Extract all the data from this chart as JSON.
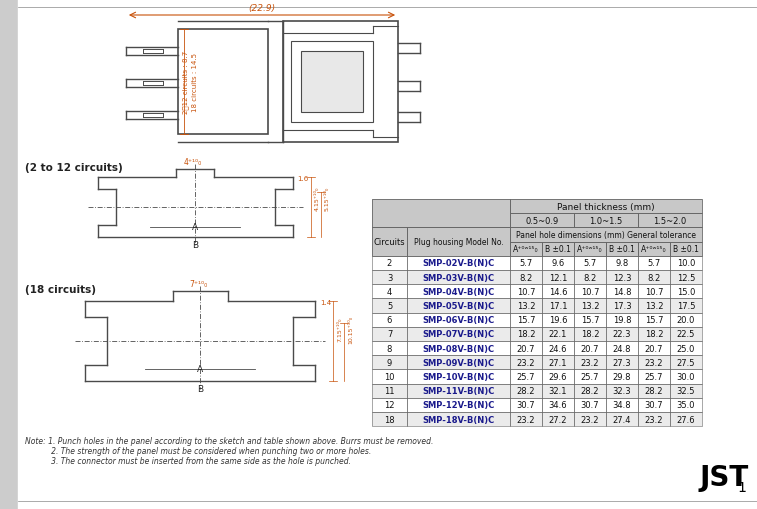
{
  "bg_color": "#ffffff",
  "dim_color": "#c8520a",
  "draw_color": "#4a4a4a",
  "header_bg": "#c8c8c8",
  "model_color": "#1a1a8c",
  "table_header1": "Panel thickness (mm)",
  "table_header2_cols": [
    "0.5~0.9",
    "1.0~1.5",
    "1.5~2.0"
  ],
  "table_header3": "Panel hole dimensions (mm) General tolerance",
  "table_data": [
    [
      2,
      "SMP-02V-B(N)C",
      "5.7",
      "9.6",
      "5.7",
      "9.8",
      "5.7",
      "10.0"
    ],
    [
      3,
      "SMP-03V-B(N)C",
      "8.2",
      "12.1",
      "8.2",
      "12.3",
      "8.2",
      "12.5"
    ],
    [
      4,
      "SMP-04V-B(N)C",
      "10.7",
      "14.6",
      "10.7",
      "14.8",
      "10.7",
      "15.0"
    ],
    [
      5,
      "SMP-05V-B(N)C",
      "13.2",
      "17.1",
      "13.2",
      "17.3",
      "13.2",
      "17.5"
    ],
    [
      6,
      "SMP-06V-B(N)C",
      "15.7",
      "19.6",
      "15.7",
      "19.8",
      "15.7",
      "20.0"
    ],
    [
      7,
      "SMP-07V-B(N)C",
      "18.2",
      "22.1",
      "18.2",
      "22.3",
      "18.2",
      "22.5"
    ],
    [
      8,
      "SMP-08V-B(N)C",
      "20.7",
      "24.6",
      "20.7",
      "24.8",
      "20.7",
      "25.0"
    ],
    [
      9,
      "SMP-09V-B(N)C",
      "23.2",
      "27.1",
      "23.2",
      "27.3",
      "23.2",
      "27.5"
    ],
    [
      10,
      "SMP-10V-B(N)C",
      "25.7",
      "29.6",
      "25.7",
      "29.8",
      "25.7",
      "30.0"
    ],
    [
      11,
      "SMP-11V-B(N)C",
      "28.2",
      "32.1",
      "28.2",
      "32.3",
      "28.2",
      "32.5"
    ],
    [
      12,
      "SMP-12V-B(N)C",
      "30.7",
      "34.6",
      "30.7",
      "34.8",
      "30.7",
      "35.0"
    ],
    [
      18,
      "SMP-18V-B(N)C",
      "23.2",
      "27.2",
      "23.2",
      "27.4",
      "23.2",
      "27.6"
    ]
  ],
  "note_lines": [
    "Note: 1. Punch holes in the panel according to the sketch and table shown above. Burrs must be removed.",
    "           2. The strength of the panel must be considered when punching two or more holes.",
    "           3. The connector must be inserted from the same side as the hole is punched."
  ],
  "jst_text": "JST",
  "page_num": "1"
}
